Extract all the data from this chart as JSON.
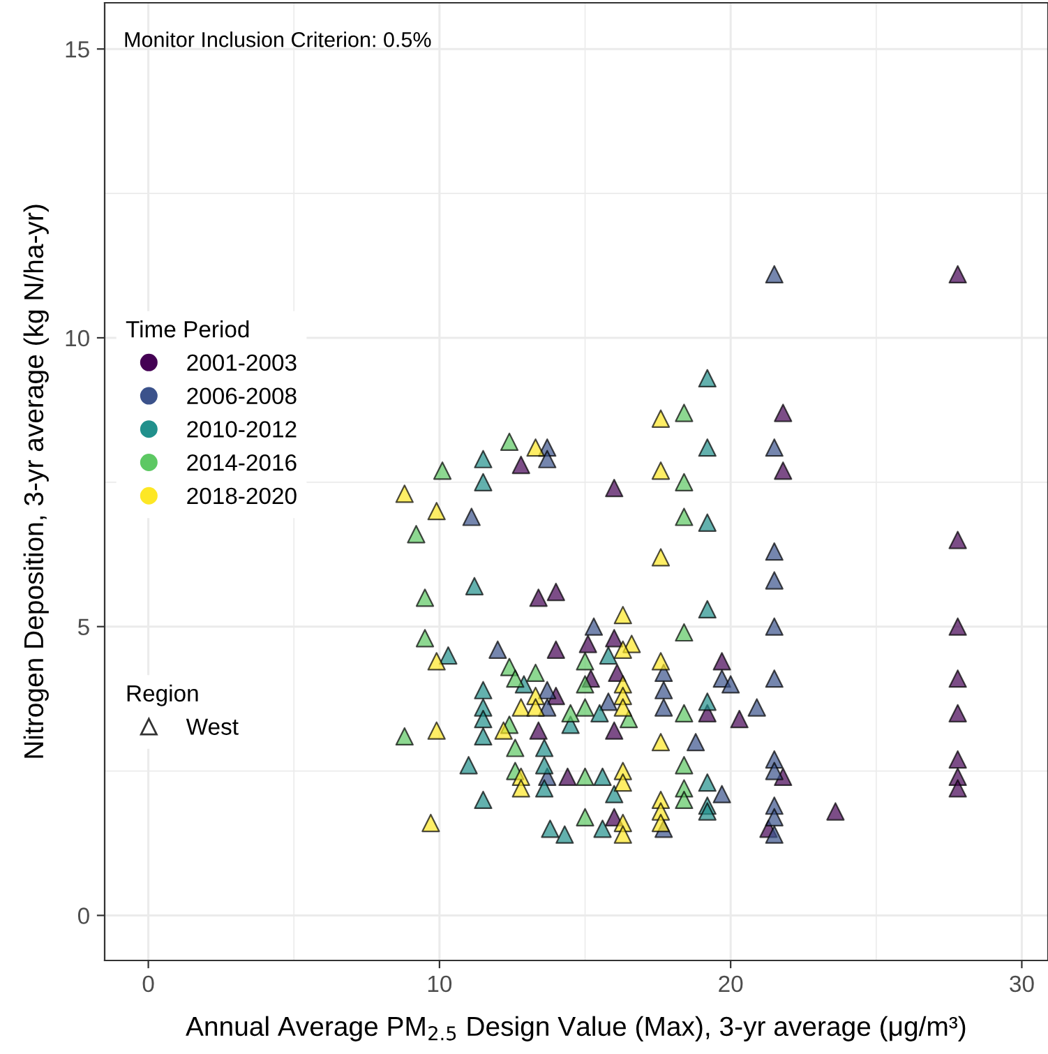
{
  "chart_data": {
    "type": "scatter",
    "xlabel": "Annual Average PM$_{2.5}$ Design Value (Max), 3-yr average (μg/m³)",
    "ylabel": "Nitrogen Deposition, 3-yr average (kg N/ha-yr)",
    "legend_title": "Time Period",
    "annotations": [
      "Monitor Inclusion Criterion: 0.5%",
      "Region",
      "West"
    ],
    "xlim": [
      -1.5,
      30.9
    ],
    "ylim": [
      -0.78,
      15.8
    ],
    "xticks": [
      0,
      10,
      20,
      30
    ],
    "yticks": [
      0,
      5,
      10,
      15
    ],
    "grid": true,
    "legend": "left",
    "marker": "triangle",
    "series": [
      {
        "name": "2001-2003",
        "color": "#440154",
        "x": [
          27.8,
          21.8,
          21.8,
          16.0,
          12.8,
          13.4,
          14.0,
          27.8,
          27.8,
          27.8,
          27.8,
          27.8,
          27.8,
          27.8,
          23.6,
          21.3,
          21.8,
          16.0,
          15.1,
          14.0,
          19.7,
          20.3,
          19.2,
          16.1,
          13.4,
          16.0,
          14.4,
          16.0,
          14.0,
          15.2
        ],
        "values": [
          11.1,
          8.7,
          7.7,
          7.4,
          7.8,
          5.5,
          5.6,
          6.5,
          5.0,
          4.1,
          3.5,
          2.7,
          2.4,
          2.2,
          1.8,
          1.5,
          2.4,
          4.8,
          4.7,
          4.6,
          4.4,
          3.4,
          3.5,
          4.2,
          3.2,
          3.2,
          2.4,
          1.7,
          3.8,
          4.1
        ]
      },
      {
        "name": "2006-2008",
        "color": "#3b528b",
        "x": [
          21.5,
          21.5,
          13.7,
          13.7,
          11.1,
          21.5,
          21.5,
          21.5,
          21.5,
          15.3,
          12.0,
          19.7,
          20.0,
          17.7,
          17.7,
          17.7,
          20.9,
          18.8,
          21.5,
          21.5,
          21.5,
          21.5,
          21.5,
          17.7,
          19.7,
          13.7,
          13.7,
          13.7,
          15.8
        ],
        "values": [
          11.1,
          8.1,
          8.1,
          7.9,
          6.9,
          6.3,
          5.8,
          5.0,
          4.1,
          5.0,
          4.6,
          4.1,
          4.0,
          4.2,
          3.9,
          3.6,
          3.6,
          3.0,
          2.7,
          2.5,
          1.9,
          1.7,
          1.4,
          1.5,
          2.1,
          3.6,
          3.9,
          2.4,
          3.7
        ]
      },
      {
        "name": "2010-2012",
        "color": "#21908c",
        "x": [
          19.2,
          19.2,
          19.2,
          19.2,
          11.5,
          11.5,
          11.2,
          10.3,
          11.5,
          11.5,
          11.5,
          11.5,
          11.0,
          11.5,
          12.9,
          13.6,
          13.6,
          13.6,
          13.8,
          14.3,
          15.6,
          15.6,
          15.5,
          15.8,
          16.0,
          19.2,
          19.2,
          19.2,
          19.2,
          14.5
        ],
        "values": [
          9.3,
          8.1,
          6.8,
          5.3,
          7.9,
          7.5,
          5.7,
          4.5,
          3.9,
          3.6,
          3.4,
          3.1,
          2.6,
          2.0,
          4.0,
          2.9,
          2.6,
          2.2,
          1.5,
          1.4,
          1.5,
          2.4,
          3.5,
          4.5,
          2.1,
          3.7,
          2.3,
          1.9,
          1.8,
          3.3
        ]
      },
      {
        "name": "2014-2016",
        "color": "#5dc863",
        "x": [
          18.4,
          18.4,
          18.4,
          12.4,
          10.1,
          9.2,
          9.5,
          9.5,
          8.8,
          12.4,
          12.6,
          13.3,
          12.4,
          12.6,
          12.6,
          15.0,
          15.0,
          15.0,
          14.5,
          15.0,
          15.0,
          18.4,
          18.4,
          18.4,
          18.4,
          18.4,
          16.5
        ],
        "values": [
          8.7,
          7.5,
          6.9,
          8.2,
          7.7,
          6.6,
          5.5,
          4.8,
          3.1,
          4.3,
          4.1,
          4.2,
          3.3,
          2.9,
          2.5,
          4.4,
          4.0,
          3.6,
          3.5,
          2.4,
          1.7,
          4.9,
          3.5,
          2.6,
          2.2,
          2.0,
          3.4
        ]
      },
      {
        "name": "2018-2020",
        "color": "#fde725",
        "x": [
          17.6,
          17.6,
          17.6,
          13.3,
          8.8,
          9.9,
          9.9,
          9.9,
          9.7,
          16.3,
          16.6,
          16.3,
          16.3,
          16.3,
          16.3,
          16.3,
          16.3,
          16.3,
          16.3,
          17.6,
          17.6,
          17.6,
          17.6,
          17.6,
          12.8,
          13.3,
          13.3,
          12.2,
          12.8,
          12.8
        ],
        "values": [
          8.6,
          7.7,
          6.2,
          8.1,
          7.3,
          7.0,
          4.4,
          3.2,
          1.6,
          5.2,
          4.7,
          4.6,
          4.0,
          3.8,
          3.6,
          2.5,
          2.3,
          1.6,
          1.4,
          4.4,
          3.0,
          2.0,
          1.8,
          1.6,
          3.6,
          3.8,
          3.6,
          3.2,
          2.4,
          2.2
        ]
      }
    ]
  }
}
